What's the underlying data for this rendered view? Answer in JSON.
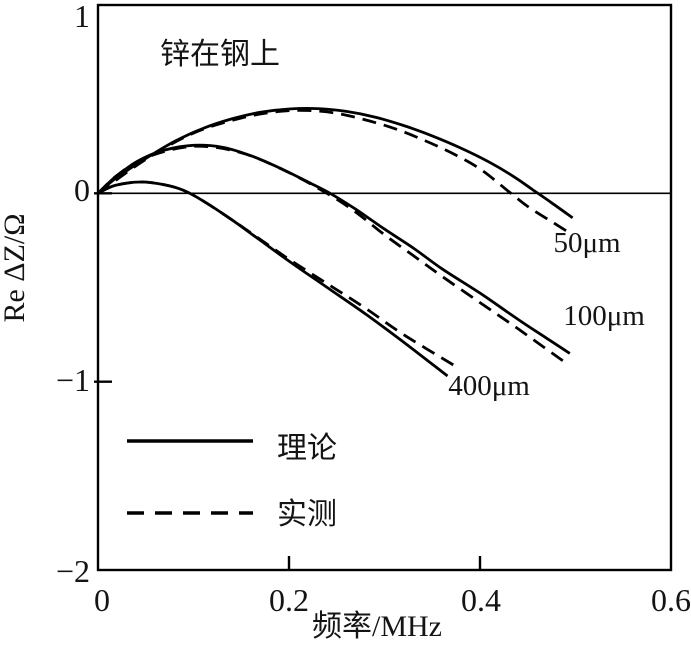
{
  "chart_data": {
    "type": "line",
    "title_annotation": "锌在钢上",
    "xlabel": "频率/MHz",
    "ylabel": "Re ΔZ/Ω",
    "xlim": [
      0,
      0.6
    ],
    "ylim": [
      -2,
      1
    ],
    "grid": false,
    "zero_line": true,
    "xticks": {
      "values": [
        0,
        0.2,
        0.4,
        0.6
      ],
      "labels": [
        "0",
        "0.2",
        "0.4",
        "0.6"
      ]
    },
    "yticks": {
      "values": [
        1,
        0,
        -1,
        -2
      ],
      "labels": [
        "1",
        "0",
        "−1",
        "−2"
      ]
    },
    "line_color": "#000000",
    "legend": [
      {
        "label": "理论",
        "line": "solid"
      },
      {
        "label": "实测",
        "line": "dashed"
      }
    ],
    "depth_labels": [
      "50μm",
      "100μm",
      "400μm"
    ],
    "series": [
      {
        "id": "50um-theory",
        "name": "50μm 理论",
        "line": "solid",
        "points": [
          [
            0,
            0
          ],
          [
            0.02,
            0.085
          ],
          [
            0.05,
            0.185
          ],
          [
            0.08,
            0.275
          ],
          [
            0.11,
            0.345
          ],
          [
            0.14,
            0.395
          ],
          [
            0.17,
            0.43
          ],
          [
            0.2,
            0.448
          ],
          [
            0.23,
            0.45
          ],
          [
            0.26,
            0.435
          ],
          [
            0.29,
            0.405
          ],
          [
            0.32,
            0.36
          ],
          [
            0.35,
            0.305
          ],
          [
            0.38,
            0.24
          ],
          [
            0.41,
            0.165
          ],
          [
            0.435,
            0.09
          ],
          [
            0.455,
            0.02
          ],
          [
            0.475,
            -0.05
          ],
          [
            0.497,
            -0.13
          ]
        ]
      },
      {
        "id": "50um-measured",
        "name": "50μm 实测",
        "line": "dashed",
        "points": [
          [
            0,
            0
          ],
          [
            0.05,
            0.18
          ],
          [
            0.1,
            0.32
          ],
          [
            0.15,
            0.4
          ],
          [
            0.19,
            0.435
          ],
          [
            0.22,
            0.44
          ],
          [
            0.25,
            0.425
          ],
          [
            0.28,
            0.39
          ],
          [
            0.31,
            0.345
          ],
          [
            0.34,
            0.285
          ],
          [
            0.37,
            0.215
          ],
          [
            0.4,
            0.13
          ],
          [
            0.43,
            0.01
          ],
          [
            0.45,
            -0.07
          ],
          [
            0.475,
            -0.15
          ],
          [
            0.497,
            -0.22
          ]
        ]
      },
      {
        "id": "100um-theory",
        "name": "100μm 理论",
        "line": "solid",
        "points": [
          [
            0,
            0
          ],
          [
            0.02,
            0.095
          ],
          [
            0.045,
            0.18
          ],
          [
            0.07,
            0.23
          ],
          [
            0.1,
            0.255
          ],
          [
            0.13,
            0.245
          ],
          [
            0.16,
            0.2
          ],
          [
            0.19,
            0.135
          ],
          [
            0.22,
            0.06
          ],
          [
            0.243,
            0
          ],
          [
            0.27,
            -0.085
          ],
          [
            0.3,
            -0.19
          ],
          [
            0.33,
            -0.29
          ],
          [
            0.36,
            -0.4
          ],
          [
            0.4,
            -0.53
          ],
          [
            0.44,
            -0.67
          ],
          [
            0.47,
            -0.77
          ],
          [
            0.494,
            -0.85
          ]
        ]
      },
      {
        "id": "100um-measured",
        "name": "100μm 实测",
        "line": "dashed",
        "points": [
          [
            0,
            0
          ],
          [
            0.02,
            0.095
          ],
          [
            0.05,
            0.19
          ],
          [
            0.1,
            0.25
          ],
          [
            0.15,
            0.215
          ],
          [
            0.2,
            0.11
          ],
          [
            0.243,
            -0.01
          ],
          [
            0.27,
            -0.1
          ],
          [
            0.3,
            -0.22
          ],
          [
            0.33,
            -0.33
          ],
          [
            0.36,
            -0.44
          ],
          [
            0.4,
            -0.58
          ],
          [
            0.44,
            -0.72
          ],
          [
            0.487,
            -0.89
          ]
        ]
      },
      {
        "id": "400um-theory",
        "name": "400μm 理论",
        "line": "solid",
        "points": [
          [
            0,
            0
          ],
          [
            0.018,
            0.042
          ],
          [
            0.045,
            0.06
          ],
          [
            0.07,
            0.045
          ],
          [
            0.09,
            0.015
          ],
          [
            0.11,
            -0.04
          ],
          [
            0.14,
            -0.14
          ],
          [
            0.17,
            -0.25
          ],
          [
            0.2,
            -0.36
          ],
          [
            0.24,
            -0.5
          ],
          [
            0.28,
            -0.64
          ],
          [
            0.32,
            -0.79
          ],
          [
            0.366,
            -0.97
          ]
        ]
      },
      {
        "id": "400um-measured",
        "name": "400μm 实测",
        "line": "dashed",
        "points": [
          [
            0,
            0
          ],
          [
            0.018,
            0.042
          ],
          [
            0.045,
            0.06
          ],
          [
            0.07,
            0.045
          ],
          [
            0.09,
            0.015
          ],
          [
            0.11,
            -0.04
          ],
          [
            0.14,
            -0.14
          ],
          [
            0.17,
            -0.245
          ],
          [
            0.2,
            -0.35
          ],
          [
            0.24,
            -0.48
          ],
          [
            0.28,
            -0.61
          ],
          [
            0.32,
            -0.75
          ],
          [
            0.375,
            -0.92
          ]
        ]
      }
    ]
  }
}
